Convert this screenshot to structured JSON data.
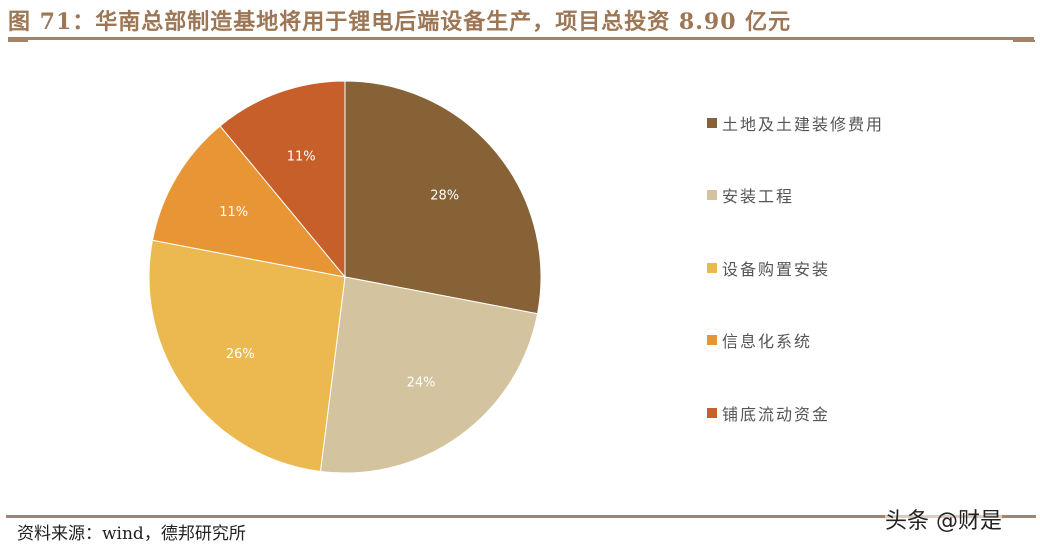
{
  "title": "图 71：华南总部制造基地将用于锂电后端设备生产，项目总投资 8.90 亿元",
  "source": "资料来源：wind，德邦研究所",
  "watermark": "头条 @财是",
  "chart_data": {
    "type": "pie",
    "title": "图 71：华南总部制造基地将用于锂电后端设备生产，项目总投资 8.90 亿元",
    "start_angle": "12 o'clock, clockwise",
    "categories": [
      "土地及土建装修费用",
      "安装工程",
      "设备购置安装",
      "信息化系统",
      "铺底流动资金"
    ],
    "values": [
      28,
      24,
      26,
      11,
      11
    ],
    "labels": [
      "28%",
      "24%",
      "26%",
      "11%",
      "11%"
    ],
    "colors": [
      "#876236",
      "#d3c39f",
      "#ebb94f",
      "#e89535",
      "#c75f2a"
    ],
    "legend_position": "right"
  },
  "legend": {
    "items": [
      {
        "label": "土地及土建装修费用",
        "color": "#876236"
      },
      {
        "label": "安装工程",
        "color": "#d3c39f"
      },
      {
        "label": "设备购置安装",
        "color": "#ebb94f"
      },
      {
        "label": "信息化系统",
        "color": "#e89535"
      },
      {
        "label": "铺底流动资金",
        "color": "#c75f2a"
      }
    ]
  }
}
